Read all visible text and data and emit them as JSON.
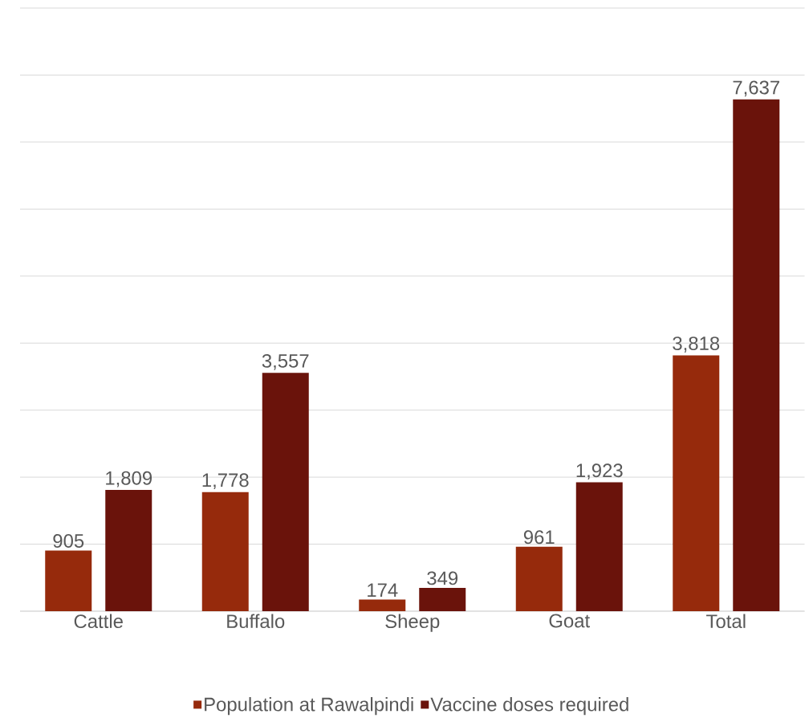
{
  "chart_data": {
    "type": "bar",
    "categories": [
      "Cattle",
      "Buffalo",
      "Sheep",
      "Goat",
      "Total"
    ],
    "series": [
      {
        "name": "Population at Rawalpindi",
        "color": "#962a0c",
        "values": [
          905,
          1778,
          174,
          961,
          3818
        ],
        "value_labels": [
          "905",
          "1,778",
          "174",
          "961",
          "3,818"
        ]
      },
      {
        "name": "Vaccine doses required",
        "color": "#6a130b",
        "values": [
          1809,
          3557,
          349,
          1923,
          7637
        ],
        "value_labels": [
          "1,809",
          "3,557",
          "349",
          "1,923",
          "7,637"
        ]
      }
    ],
    "ylim": [
      0,
      9000
    ],
    "yticks": [
      {
        "value": 0,
        "label": null
      },
      {
        "value": 1000,
        "label": null
      },
      {
        "value": 2000,
        "label": null
      },
      {
        "value": 3000,
        "label": null
      },
      {
        "value": 4000,
        "label": null
      },
      {
        "value": 5000,
        "label": null
      },
      {
        "value": 6000,
        "label": null
      },
      {
        "value": 7000,
        "label": null
      },
      {
        "value": 8000,
        "label": null
      },
      {
        "value": 9000,
        "label": null
      }
    ],
    "grid": "y",
    "legend": "bottom",
    "tick_labels": "x"
  }
}
